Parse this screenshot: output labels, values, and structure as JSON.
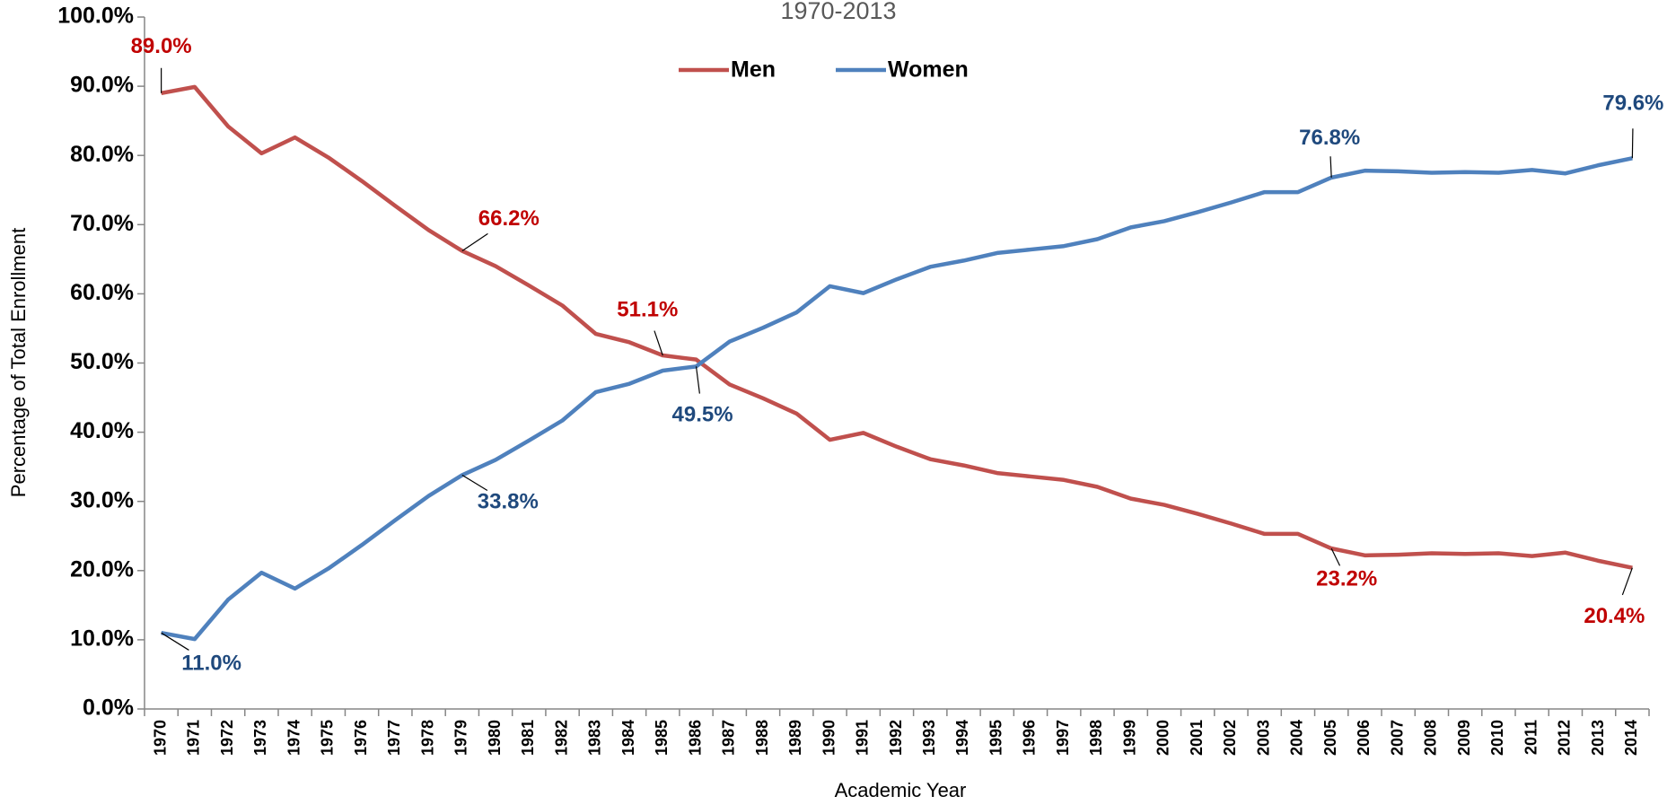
{
  "chart_data": {
    "type": "line",
    "title": "1970-2013",
    "x_label": "Academic Year",
    "y_label": "Percentage of Total Enrollment",
    "categories": [
      "1970",
      "1971",
      "1972",
      "1973",
      "1974",
      "1975",
      "1976",
      "1977",
      "1978",
      "1979",
      "1980",
      "1981",
      "1982",
      "1983",
      "1984",
      "1985",
      "1986",
      "1987",
      "1988",
      "1989",
      "1990",
      "1991",
      "1992",
      "1993",
      "1994",
      "1995",
      "1996",
      "1997",
      "1998",
      "1999",
      "2000",
      "2001",
      "2002",
      "2003",
      "2004",
      "2005",
      "2006",
      "2007",
      "2008",
      "2009",
      "2010",
      "2011",
      "2012",
      "2013",
      "2014"
    ],
    "series": [
      {
        "name": "Men",
        "color": "#c0504d",
        "label_color": "#c00000",
        "values": [
          89.0,
          89.9,
          84.2,
          80.3,
          82.6,
          79.7,
          76.3,
          72.7,
          69.2,
          66.2,
          64.0,
          61.2,
          58.3,
          54.2,
          53.0,
          51.1,
          50.5,
          46.9,
          44.9,
          42.7,
          38.9,
          39.9,
          37.9,
          36.1,
          35.2,
          34.1,
          33.6,
          33.1,
          32.1,
          30.4,
          29.5,
          28.2,
          26.8,
          25.3,
          25.3,
          23.2,
          22.2,
          22.3,
          22.5,
          22.4,
          22.5,
          22.1,
          22.6,
          21.4,
          20.4
        ],
        "value_labels": [
          "89.0%",
          null,
          null,
          null,
          null,
          null,
          null,
          null,
          null,
          "66.2%",
          null,
          null,
          null,
          null,
          null,
          "51.1%",
          null,
          null,
          null,
          null,
          null,
          null,
          null,
          null,
          null,
          null,
          null,
          null,
          null,
          null,
          null,
          null,
          null,
          null,
          null,
          "23.2%",
          null,
          null,
          null,
          null,
          null,
          null,
          null,
          null,
          "20.4%"
        ]
      },
      {
        "name": "Women",
        "color": "#4f81bd",
        "label_color": "#1f497d",
        "values": [
          11.0,
          10.1,
          15.8,
          19.7,
          17.4,
          20.3,
          23.7,
          27.3,
          30.8,
          33.8,
          36.0,
          38.8,
          41.7,
          45.8,
          47.0,
          48.9,
          49.5,
          53.1,
          55.1,
          57.3,
          61.1,
          60.1,
          62.1,
          63.9,
          64.8,
          65.9,
          66.4,
          66.9,
          67.9,
          69.6,
          70.5,
          71.8,
          73.2,
          74.7,
          74.7,
          76.8,
          77.8,
          77.7,
          77.5,
          77.6,
          77.5,
          77.9,
          77.4,
          78.6,
          79.6
        ],
        "value_labels": [
          "11.0%",
          null,
          null,
          null,
          null,
          null,
          null,
          null,
          null,
          "33.8%",
          null,
          null,
          null,
          null,
          null,
          null,
          "49.5%",
          null,
          null,
          null,
          null,
          null,
          null,
          null,
          null,
          null,
          null,
          null,
          null,
          null,
          null,
          null,
          null,
          null,
          null,
          "76.8%",
          null,
          null,
          null,
          null,
          null,
          null,
          null,
          null,
          "79.6%"
        ]
      }
    ],
    "ylim": [
      0,
      100
    ],
    "yticks": [
      {
        "value": 0,
        "label": "0.0%"
      },
      {
        "value": 10,
        "label": "10.0%"
      },
      {
        "value": 20,
        "label": "20.0%"
      },
      {
        "value": 30,
        "label": "30.0%"
      },
      {
        "value": 40,
        "label": "40.0%"
      },
      {
        "value": 50,
        "label": "50.0%"
      },
      {
        "value": 60,
        "label": "60.0%"
      },
      {
        "value": 70,
        "label": "70.0%"
      },
      {
        "value": 80,
        "label": "80.0%"
      },
      {
        "value": 90,
        "label": "90.0%"
      },
      {
        "value": 100,
        "label": "100.0%"
      }
    ],
    "legend": "top",
    "grid": false
  }
}
